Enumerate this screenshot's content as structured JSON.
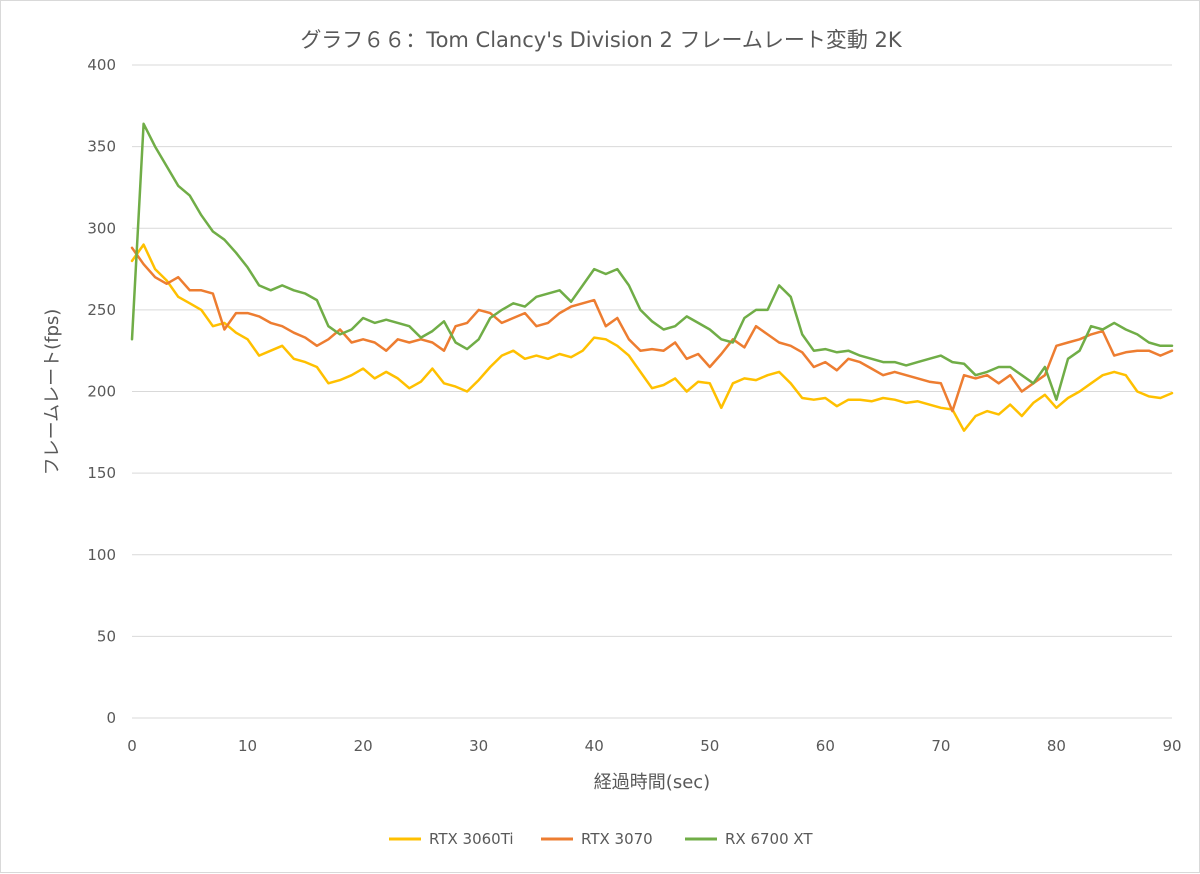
{
  "chart_data": {
    "type": "line",
    "title": "グラフ６６：Tom Clancy's Division 2 フレームレート変動 2K",
    "xlabel": "経過時間(sec)",
    "ylabel": "フレームレート(fps)",
    "xlim": [
      0,
      90
    ],
    "ylim": [
      0,
      400
    ],
    "xticks": [
      0,
      10,
      20,
      30,
      40,
      50,
      60,
      70,
      80,
      90
    ],
    "yticks": [
      0,
      50,
      100,
      150,
      200,
      250,
      300,
      350,
      400
    ],
    "grid": "horizontal",
    "legend_position": "bottom",
    "x": [
      0,
      1,
      2,
      3,
      4,
      5,
      6,
      7,
      8,
      9,
      10,
      11,
      12,
      13,
      14,
      15,
      16,
      17,
      18,
      19,
      20,
      21,
      22,
      23,
      24,
      25,
      26,
      27,
      28,
      29,
      30,
      31,
      32,
      33,
      34,
      35,
      36,
      37,
      38,
      39,
      40,
      41,
      42,
      43,
      44,
      45,
      46,
      47,
      48,
      49,
      50,
      51,
      52,
      53,
      54,
      55,
      56,
      57,
      58,
      59,
      60,
      61,
      62,
      63,
      64,
      65,
      66,
      67,
      68,
      69,
      70,
      71,
      72,
      73,
      74,
      75,
      76,
      77,
      78,
      79,
      80,
      81,
      82,
      83,
      84,
      85,
      86,
      87,
      88,
      89,
      90
    ],
    "series": [
      {
        "name": "RTX 3060Ti",
        "color": "#FFC000",
        "values": [
          280,
          290,
          275,
          268,
          258,
          254,
          250,
          240,
          242,
          236,
          232,
          222,
          225,
          228,
          220,
          218,
          215,
          205,
          207,
          210,
          214,
          208,
          212,
          208,
          202,
          206,
          214,
          205,
          203,
          200,
          207,
          215,
          222,
          225,
          220,
          222,
          220,
          223,
          221,
          225,
          233,
          232,
          228,
          222,
          212,
          202,
          204,
          208,
          200,
          206,
          205,
          190,
          205,
          208,
          207,
          210,
          212,
          205,
          196,
          195,
          196,
          191,
          195,
          195,
          194,
          196,
          195,
          193,
          194,
          192,
          190,
          189,
          176,
          185,
          188,
          186,
          192,
          185,
          193,
          198,
          190,
          196,
          200,
          205,
          210,
          212,
          210,
          200,
          197,
          196,
          199
        ]
      },
      {
        "name": "RTX 3070",
        "color": "#ED7D31",
        "values": [
          288,
          278,
          270,
          266,
          270,
          262,
          262,
          260,
          238,
          248,
          248,
          246,
          242,
          240,
          236,
          233,
          228,
          232,
          238,
          230,
          232,
          230,
          225,
          232,
          230,
          232,
          230,
          225,
          240,
          242,
          250,
          248,
          242,
          245,
          248,
          240,
          242,
          248,
          252,
          254,
          256,
          240,
          245,
          232,
          225,
          226,
          225,
          230,
          220,
          223,
          215,
          223,
          232,
          227,
          240,
          235,
          230,
          228,
          224,
          215,
          218,
          213,
          220,
          218,
          214,
          210,
          212,
          210,
          208,
          206,
          205,
          188,
          210,
          208,
          210,
          205,
          210,
          200,
          205,
          210,
          228,
          230,
          232,
          235,
          237,
          222,
          224,
          225,
          225,
          222,
          225
        ]
      },
      {
        "name": "RX 6700 XT",
        "color": "#70AD47",
        "values": [
          232,
          364,
          350,
          338,
          326,
          320,
          308,
          298,
          293,
          285,
          276,
          265,
          262,
          265,
          262,
          260,
          256,
          240,
          235,
          238,
          245,
          242,
          244,
          242,
          240,
          233,
          237,
          243,
          230,
          226,
          232,
          245,
          250,
          254,
          252,
          258,
          260,
          262,
          255,
          265,
          275,
          272,
          275,
          265,
          250,
          243,
          238,
          240,
          246,
          242,
          238,
          232,
          230,
          245,
          250,
          250,
          265,
          258,
          235,
          225,
          226,
          224,
          225,
          222,
          220,
          218,
          218,
          216,
          218,
          220,
          222,
          218,
          217,
          210,
          212,
          215,
          215,
          210,
          205,
          215,
          195,
          220,
          225,
          240,
          238,
          242,
          238,
          235,
          230,
          228,
          228
        ]
      }
    ]
  }
}
